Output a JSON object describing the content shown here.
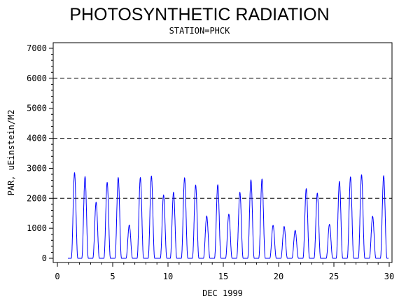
{
  "chart_data": {
    "type": "line",
    "title": "PHOTOSYNTHETIC RADIATION",
    "subtitle": "STATION=PHCK",
    "xlabel": "DEC 1999",
    "ylabel": "PAR, uEinstein/M2",
    "xlim": [
      0,
      30
    ],
    "ylim": [
      0,
      7000
    ],
    "xticks": [
      0,
      5,
      10,
      15,
      20,
      25,
      30
    ],
    "yticks": [
      0,
      1000,
      2000,
      3000,
      4000,
      5000,
      6000,
      7000
    ],
    "reference_lines_y": [
      2000,
      4000,
      6000
    ],
    "grid": false,
    "legend": "none",
    "series_color": "#0000ff",
    "series": [
      {
        "daily_peaks": [
          {
            "day": 1,
            "x": 1.55,
            "y": 2850
          },
          {
            "day": 2,
            "x": 2.5,
            "y": 2720
          },
          {
            "day": 3,
            "x": 3.5,
            "y": 1870
          },
          {
            "day": 4,
            "x": 4.5,
            "y": 2530
          },
          {
            "day": 5,
            "x": 5.5,
            "y": 2690
          },
          {
            "day": 6,
            "x": 6.5,
            "y": 1110
          },
          {
            "day": 7,
            "x": 7.5,
            "y": 2690
          },
          {
            "day": 8,
            "x": 8.5,
            "y": 2740
          },
          {
            "day": 9,
            "x": 9.6,
            "y": 2110
          },
          {
            "day": 10,
            "x": 10.5,
            "y": 2200
          },
          {
            "day": 11,
            "x": 11.5,
            "y": 2680
          },
          {
            "day": 12,
            "x": 12.5,
            "y": 2440
          },
          {
            "day": 13,
            "x": 13.5,
            "y": 1410
          },
          {
            "day": 14,
            "x": 14.5,
            "y": 2450
          },
          {
            "day": 15,
            "x": 15.5,
            "y": 1470
          },
          {
            "day": 16,
            "x": 16.5,
            "y": 2200
          },
          {
            "day": 17,
            "x": 17.5,
            "y": 2610
          },
          {
            "day": 18,
            "x": 18.5,
            "y": 2640
          },
          {
            "day": 19,
            "x": 19.5,
            "y": 1100
          },
          {
            "day": 20,
            "x": 20.5,
            "y": 1060
          },
          {
            "day": 21,
            "x": 21.5,
            "y": 930
          },
          {
            "day": 22,
            "x": 22.5,
            "y": 2320
          },
          {
            "day": 23,
            "x": 23.5,
            "y": 2170
          },
          {
            "day": 24,
            "x": 24.6,
            "y": 1130
          },
          {
            "day": 25,
            "x": 25.5,
            "y": 2560
          },
          {
            "day": 26,
            "x": 26.5,
            "y": 2710
          },
          {
            "day": 27,
            "x": 27.5,
            "y": 2780
          },
          {
            "day": 28,
            "x": 28.5,
            "y": 1400
          },
          {
            "day": 29,
            "x": 29.5,
            "y": 2750
          }
        ]
      }
    ]
  }
}
